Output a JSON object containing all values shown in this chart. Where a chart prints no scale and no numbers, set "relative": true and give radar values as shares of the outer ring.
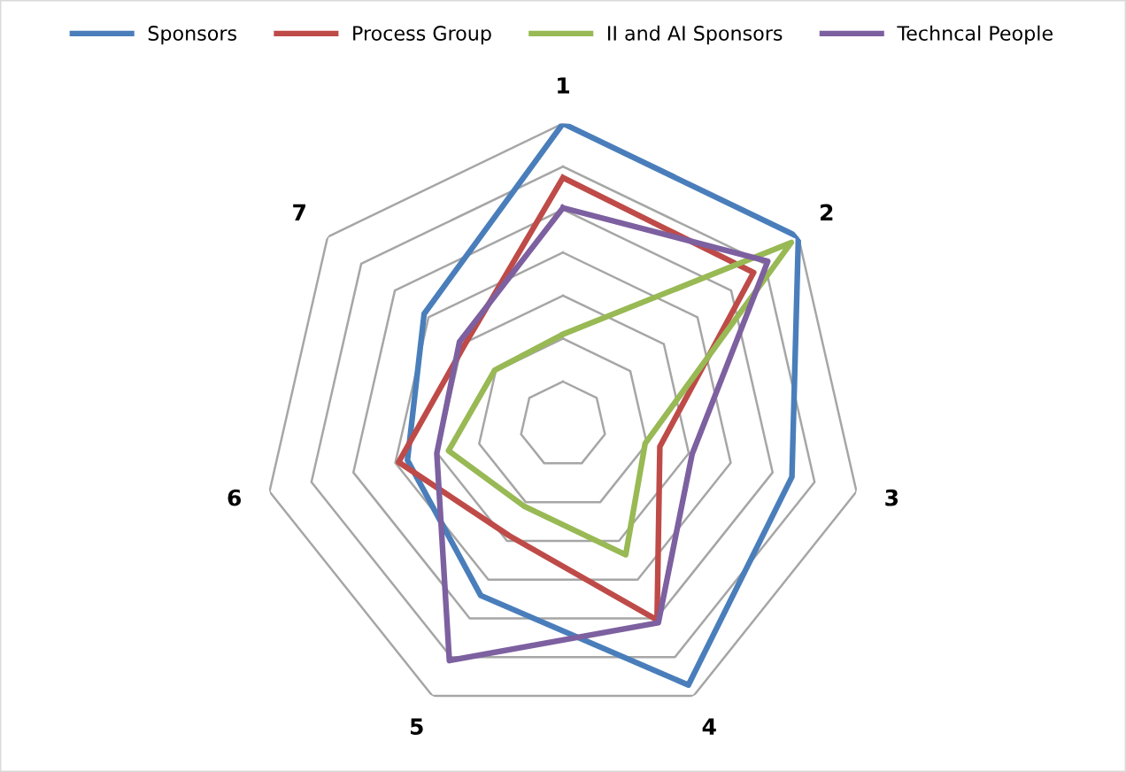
{
  "chart_data": {
    "type": "radar",
    "relative": true,
    "grid": true,
    "legend": "top",
    "categories": [
      "1",
      "2",
      "3",
      "4",
      "5",
      "6",
      "7"
    ],
    "series": [
      {
        "name": "Sponsors",
        "color": "#4a7ebb",
        "values": [
          1.0,
          1.0,
          0.78,
          0.96,
          0.63,
          0.53,
          0.59
        ]
      },
      {
        "name": "Process Group",
        "color": "#be4b48",
        "values": [
          0.82,
          0.81,
          0.33,
          0.72,
          0.41,
          0.56,
          0.42
        ]
      },
      {
        "name": "II and AI Sponsors",
        "color": "#98b954",
        "values": [
          0.3,
          0.97,
          0.28,
          0.48,
          0.3,
          0.39,
          0.29
        ]
      },
      {
        "name": "Techncal People",
        "color": "#7d60a0",
        "values": [
          0.72,
          0.87,
          0.44,
          0.73,
          0.87,
          0.43,
          0.44
        ]
      }
    ]
  }
}
